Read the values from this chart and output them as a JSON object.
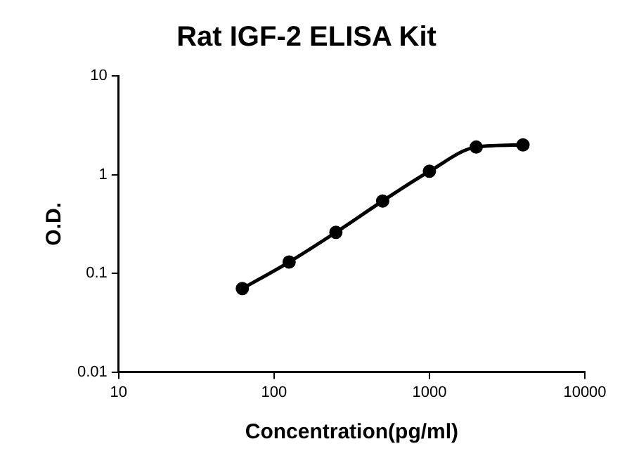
{
  "chart_data": {
    "type": "line",
    "title": "Rat IGF-2 ELISA Kit",
    "xlabel": "Concentration(pg/ml)",
    "ylabel": "O.D.",
    "x": [
      62.5,
      125,
      250,
      500,
      1000,
      2000,
      4000
    ],
    "series": [
      {
        "color": "#000000",
        "values": [
          0.07,
          0.13,
          0.26,
          0.54,
          1.08,
          1.9,
          2.0
        ]
      }
    ],
    "log": "xy",
    "xlim": [
      10,
      10000
    ],
    "xticks": [
      10,
      100,
      1000,
      10000
    ],
    "ylim": [
      0.01,
      10
    ],
    "yticks": [
      0.01,
      0.1,
      1,
      10
    ],
    "grid": false,
    "legend": false,
    "marker": "circle",
    "line_style": "solid"
  }
}
